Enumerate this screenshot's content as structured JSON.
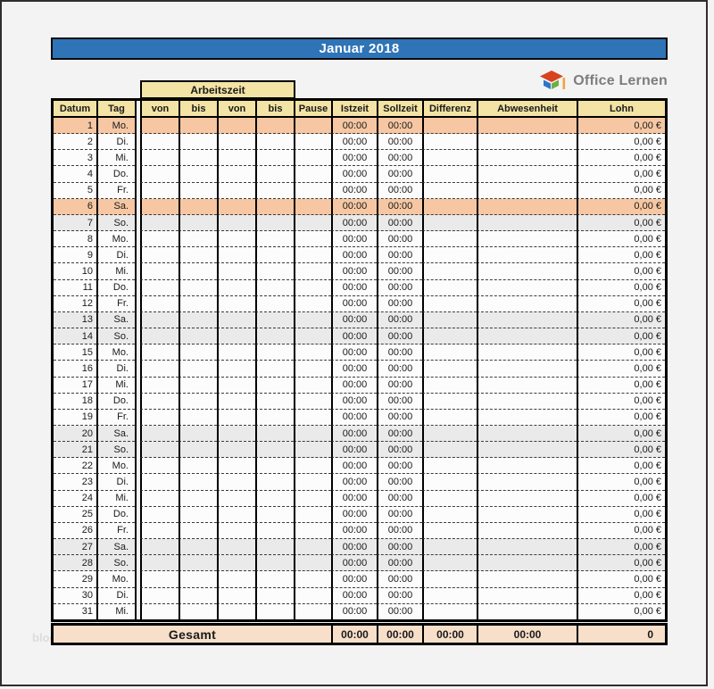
{
  "title": "Januar 2018",
  "logo": {
    "text": "Office Lernen"
  },
  "watermark": "blog",
  "table": {
    "arbeitszeit_header": "Arbeitszeit",
    "columns": {
      "datum": "Datum",
      "tag": "Tag",
      "von1": "von",
      "bis1": "bis",
      "von2": "von",
      "bis2": "bis",
      "pause": "Pause",
      "istzeit": "Istzeit",
      "sollzeit": "Sollzeit",
      "differenz": "Differenz",
      "abwesenheit": "Abwesenheit",
      "lohn": "Lohn"
    },
    "rows": [
      {
        "datum": "1",
        "tag": "Mo.",
        "von1": "",
        "bis1": "",
        "von2": "",
        "bis2": "",
        "pause": "",
        "istzeit": "00:00",
        "sollzeit": "00:00",
        "differenz": "",
        "abwesenheit": "",
        "lohn": "0,00 €",
        "type": "holiday"
      },
      {
        "datum": "2",
        "tag": "Di.",
        "von1": "",
        "bis1": "",
        "von2": "",
        "bis2": "",
        "pause": "",
        "istzeit": "00:00",
        "sollzeit": "00:00",
        "differenz": "",
        "abwesenheit": "",
        "lohn": "0,00 €",
        "type": "normal"
      },
      {
        "datum": "3",
        "tag": "Mi.",
        "von1": "",
        "bis1": "",
        "von2": "",
        "bis2": "",
        "pause": "",
        "istzeit": "00:00",
        "sollzeit": "00:00",
        "differenz": "",
        "abwesenheit": "",
        "lohn": "0,00 €",
        "type": "normal"
      },
      {
        "datum": "4",
        "tag": "Do.",
        "von1": "",
        "bis1": "",
        "von2": "",
        "bis2": "",
        "pause": "",
        "istzeit": "00:00",
        "sollzeit": "00:00",
        "differenz": "",
        "abwesenheit": "",
        "lohn": "0,00 €",
        "type": "normal"
      },
      {
        "datum": "5",
        "tag": "Fr.",
        "von1": "",
        "bis1": "",
        "von2": "",
        "bis2": "",
        "pause": "",
        "istzeit": "00:00",
        "sollzeit": "00:00",
        "differenz": "",
        "abwesenheit": "",
        "lohn": "0,00 €",
        "type": "normal"
      },
      {
        "datum": "6",
        "tag": "Sa.",
        "von1": "",
        "bis1": "",
        "von2": "",
        "bis2": "",
        "pause": "",
        "istzeit": "00:00",
        "sollzeit": "00:00",
        "differenz": "",
        "abwesenheit": "",
        "lohn": "0,00 €",
        "type": "holiday"
      },
      {
        "datum": "7",
        "tag": "So.",
        "von1": "",
        "bis1": "",
        "von2": "",
        "bis2": "",
        "pause": "",
        "istzeit": "00:00",
        "sollzeit": "00:00",
        "differenz": "",
        "abwesenheit": "",
        "lohn": "0,00 €",
        "type": "weekend"
      },
      {
        "datum": "8",
        "tag": "Mo.",
        "von1": "",
        "bis1": "",
        "von2": "",
        "bis2": "",
        "pause": "",
        "istzeit": "00:00",
        "sollzeit": "00:00",
        "differenz": "",
        "abwesenheit": "",
        "lohn": "0,00 €",
        "type": "normal"
      },
      {
        "datum": "9",
        "tag": "Di.",
        "von1": "",
        "bis1": "",
        "von2": "",
        "bis2": "",
        "pause": "",
        "istzeit": "00:00",
        "sollzeit": "00:00",
        "differenz": "",
        "abwesenheit": "",
        "lohn": "0,00 €",
        "type": "normal"
      },
      {
        "datum": "10",
        "tag": "Mi.",
        "von1": "",
        "bis1": "",
        "von2": "",
        "bis2": "",
        "pause": "",
        "istzeit": "00:00",
        "sollzeit": "00:00",
        "differenz": "",
        "abwesenheit": "",
        "lohn": "0,00 €",
        "type": "normal"
      },
      {
        "datum": "11",
        "tag": "Do.",
        "von1": "",
        "bis1": "",
        "von2": "",
        "bis2": "",
        "pause": "",
        "istzeit": "00:00",
        "sollzeit": "00:00",
        "differenz": "",
        "abwesenheit": "",
        "lohn": "0,00 €",
        "type": "normal"
      },
      {
        "datum": "12",
        "tag": "Fr.",
        "von1": "",
        "bis1": "",
        "von2": "",
        "bis2": "",
        "pause": "",
        "istzeit": "00:00",
        "sollzeit": "00:00",
        "differenz": "",
        "abwesenheit": "",
        "lohn": "0,00 €",
        "type": "normal"
      },
      {
        "datum": "13",
        "tag": "Sa.",
        "von1": "",
        "bis1": "",
        "von2": "",
        "bis2": "",
        "pause": "",
        "istzeit": "00:00",
        "sollzeit": "00:00",
        "differenz": "",
        "abwesenheit": "",
        "lohn": "0,00 €",
        "type": "weekend"
      },
      {
        "datum": "14",
        "tag": "So.",
        "von1": "",
        "bis1": "",
        "von2": "",
        "bis2": "",
        "pause": "",
        "istzeit": "00:00",
        "sollzeit": "00:00",
        "differenz": "",
        "abwesenheit": "",
        "lohn": "0,00 €",
        "type": "weekend"
      },
      {
        "datum": "15",
        "tag": "Mo.",
        "von1": "",
        "bis1": "",
        "von2": "",
        "bis2": "",
        "pause": "",
        "istzeit": "00:00",
        "sollzeit": "00:00",
        "differenz": "",
        "abwesenheit": "",
        "lohn": "0,00 €",
        "type": "normal"
      },
      {
        "datum": "16",
        "tag": "Di.",
        "von1": "",
        "bis1": "",
        "von2": "",
        "bis2": "",
        "pause": "",
        "istzeit": "00:00",
        "sollzeit": "00:00",
        "differenz": "",
        "abwesenheit": "",
        "lohn": "0,00 €",
        "type": "normal"
      },
      {
        "datum": "17",
        "tag": "Mi.",
        "von1": "",
        "bis1": "",
        "von2": "",
        "bis2": "",
        "pause": "",
        "istzeit": "00:00",
        "sollzeit": "00:00",
        "differenz": "",
        "abwesenheit": "",
        "lohn": "0,00 €",
        "type": "normal"
      },
      {
        "datum": "18",
        "tag": "Do.",
        "von1": "",
        "bis1": "",
        "von2": "",
        "bis2": "",
        "pause": "",
        "istzeit": "00:00",
        "sollzeit": "00:00",
        "differenz": "",
        "abwesenheit": "",
        "lohn": "0,00 €",
        "type": "normal"
      },
      {
        "datum": "19",
        "tag": "Fr.",
        "von1": "",
        "bis1": "",
        "von2": "",
        "bis2": "",
        "pause": "",
        "istzeit": "00:00",
        "sollzeit": "00:00",
        "differenz": "",
        "abwesenheit": "",
        "lohn": "0,00 €",
        "type": "normal"
      },
      {
        "datum": "20",
        "tag": "Sa.",
        "von1": "",
        "bis1": "",
        "von2": "",
        "bis2": "",
        "pause": "",
        "istzeit": "00:00",
        "sollzeit": "00:00",
        "differenz": "",
        "abwesenheit": "",
        "lohn": "0,00 €",
        "type": "weekend"
      },
      {
        "datum": "21",
        "tag": "So.",
        "von1": "",
        "bis1": "",
        "von2": "",
        "bis2": "",
        "pause": "",
        "istzeit": "00:00",
        "sollzeit": "00:00",
        "differenz": "",
        "abwesenheit": "",
        "lohn": "0,00 €",
        "type": "weekend"
      },
      {
        "datum": "22",
        "tag": "Mo.",
        "von1": "",
        "bis1": "",
        "von2": "",
        "bis2": "",
        "pause": "",
        "istzeit": "00:00",
        "sollzeit": "00:00",
        "differenz": "",
        "abwesenheit": "",
        "lohn": "0,00 €",
        "type": "normal"
      },
      {
        "datum": "23",
        "tag": "Di.",
        "von1": "",
        "bis1": "",
        "von2": "",
        "bis2": "",
        "pause": "",
        "istzeit": "00:00",
        "sollzeit": "00:00",
        "differenz": "",
        "abwesenheit": "",
        "lohn": "0,00 €",
        "type": "normal"
      },
      {
        "datum": "24",
        "tag": "Mi.",
        "von1": "",
        "bis1": "",
        "von2": "",
        "bis2": "",
        "pause": "",
        "istzeit": "00:00",
        "sollzeit": "00:00",
        "differenz": "",
        "abwesenheit": "",
        "lohn": "0,00 €",
        "type": "normal"
      },
      {
        "datum": "25",
        "tag": "Do.",
        "von1": "",
        "bis1": "",
        "von2": "",
        "bis2": "",
        "pause": "",
        "istzeit": "00:00",
        "sollzeit": "00:00",
        "differenz": "",
        "abwesenheit": "",
        "lohn": "0,00 €",
        "type": "normal"
      },
      {
        "datum": "26",
        "tag": "Fr.",
        "von1": "",
        "bis1": "",
        "von2": "",
        "bis2": "",
        "pause": "",
        "istzeit": "00:00",
        "sollzeit": "00:00",
        "differenz": "",
        "abwesenheit": "",
        "lohn": "0,00 €",
        "type": "normal"
      },
      {
        "datum": "27",
        "tag": "Sa.",
        "von1": "",
        "bis1": "",
        "von2": "",
        "bis2": "",
        "pause": "",
        "istzeit": "00:00",
        "sollzeit": "00:00",
        "differenz": "",
        "abwesenheit": "",
        "lohn": "0,00 €",
        "type": "weekend"
      },
      {
        "datum": "28",
        "tag": "So.",
        "von1": "",
        "bis1": "",
        "von2": "",
        "bis2": "",
        "pause": "",
        "istzeit": "00:00",
        "sollzeit": "00:00",
        "differenz": "",
        "abwesenheit": "",
        "lohn": "0,00 €",
        "type": "weekend"
      },
      {
        "datum": "29",
        "tag": "Mo.",
        "von1": "",
        "bis1": "",
        "von2": "",
        "bis2": "",
        "pause": "",
        "istzeit": "00:00",
        "sollzeit": "00:00",
        "differenz": "",
        "abwesenheit": "",
        "lohn": "0,00 €",
        "type": "normal"
      },
      {
        "datum": "30",
        "tag": "Di.",
        "von1": "",
        "bis1": "",
        "von2": "",
        "bis2": "",
        "pause": "",
        "istzeit": "00:00",
        "sollzeit": "00:00",
        "differenz": "",
        "abwesenheit": "",
        "lohn": "0,00 €",
        "type": "normal"
      },
      {
        "datum": "31",
        "tag": "Mi.",
        "von1": "",
        "bis1": "",
        "von2": "",
        "bis2": "",
        "pause": "",
        "istzeit": "00:00",
        "sollzeit": "00:00",
        "differenz": "",
        "abwesenheit": "",
        "lohn": "0,00 €",
        "type": "normal"
      }
    ]
  },
  "total": {
    "label": "Gesamt",
    "istzeit": "00:00",
    "sollzeit": "00:00",
    "differenz": "00:00",
    "abwesenheit": "00:00",
    "lohn": "0"
  },
  "colors": {
    "banner": "#2E74B6",
    "header_fill": "#F3E3A4",
    "holiday_fill": "#F6C7A2",
    "weekend_fill": "#EAEAEA",
    "total_fill": "#F7DFC9"
  }
}
